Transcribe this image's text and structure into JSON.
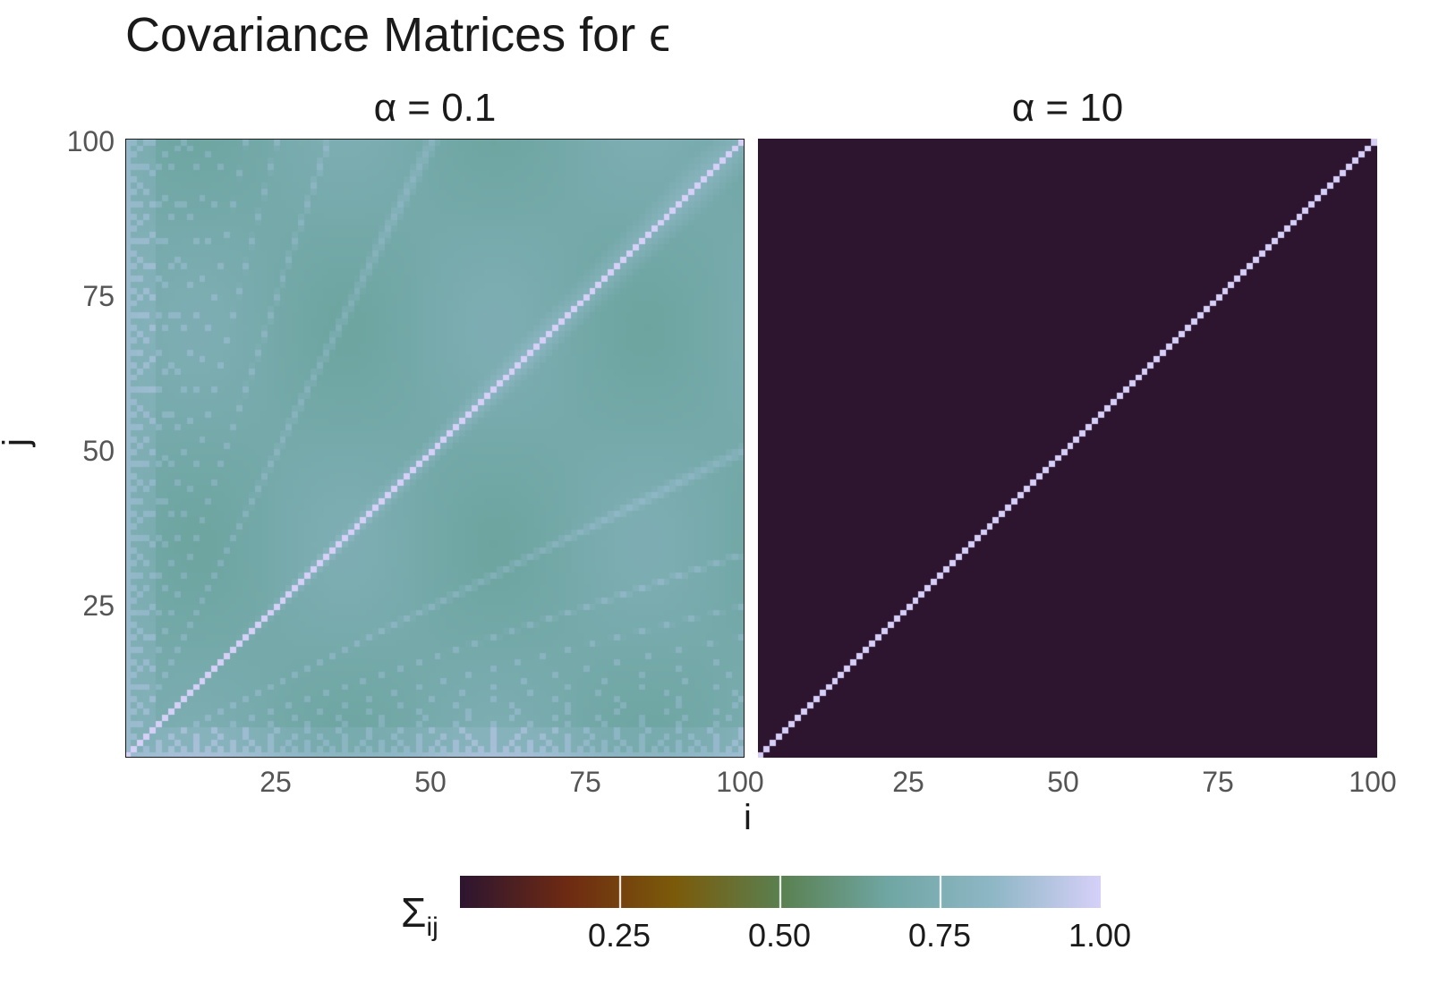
{
  "chart_data": {
    "type": "heatmap",
    "title": "Covariance Matrices for ϵ",
    "xlabel": "i",
    "ylabel": "j",
    "xlim": [
      1,
      100
    ],
    "ylim": [
      1,
      100
    ],
    "xticks": [
      "25",
      "50",
      "75",
      "100"
    ],
    "yticks": [
      "100",
      "75",
      "50",
      "25"
    ],
    "facets": [
      {
        "label": "α = 0.1",
        "matrix_size": 100,
        "diagonal_value": 1.0,
        "typical_off_diagonal_value": 0.7,
        "structure": "nested block covariance; values near diagonal and near i/j multiples slightly higher (about 0.75-0.85), bulk about 0.65-0.72"
      },
      {
        "label": "α = 10",
        "matrix_size": 100,
        "diagonal_value": 1.0,
        "typical_off_diagonal_value": 0.0,
        "structure": "identity-like: diagonal 1, off-diagonal near 0"
      }
    ],
    "legend": {
      "title": "Σ",
      "title_subscript": "ij",
      "type": "continuous colorbar",
      "placement": "bottom",
      "range": [
        0,
        1
      ],
      "ticks": [
        "0.25",
        "0.50",
        "0.75",
        "1.00"
      ],
      "colors": [
        "#2d1530",
        "#6e2a12",
        "#7b5a0a",
        "#5a8050",
        "#6fa6a3",
        "#8fb7c6",
        "#d6d0f8"
      ]
    },
    "grid": false
  }
}
